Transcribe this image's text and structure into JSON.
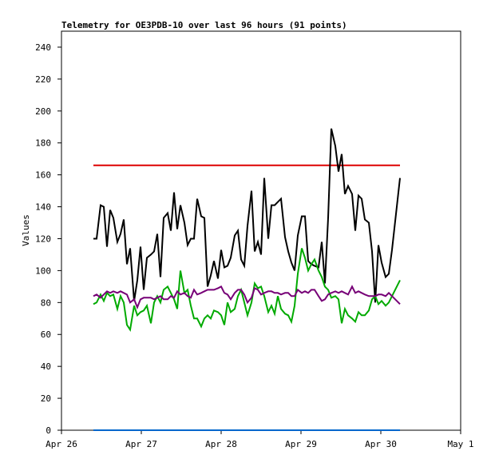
{
  "chart_data": {
    "type": "line",
    "title": "Telemetry for OE3PDB-10 over last 96 hours (91 points)",
    "xlabel": "",
    "ylabel": "Values",
    "ylim": [
      0,
      250
    ],
    "yticks": [
      0,
      20,
      40,
      60,
      80,
      100,
      120,
      140,
      160,
      180,
      200,
      220,
      240
    ],
    "xlim_days": [
      "Apr 26",
      "May 1"
    ],
    "xticks": [
      "Apr 26",
      "Apr 27",
      "Apr 28",
      "Apr 29",
      "Apr 30",
      "May 1"
    ],
    "grid": false,
    "legend": "none",
    "series": [
      {
        "color": "#dd0000",
        "x": [
          26.4,
          30.24
        ],
        "values": [
          166,
          166
        ]
      },
      {
        "color": "#0066cc",
        "x": [
          26.4,
          30.24
        ],
        "values": [
          0,
          0
        ]
      },
      {
        "color": "#000000",
        "x": [
          26.4,
          26.44,
          26.49,
          26.53,
          26.57,
          26.61,
          26.65,
          26.7,
          26.74,
          26.78,
          26.82,
          26.86,
          26.91,
          26.95,
          26.99,
          27.03,
          27.07,
          27.12,
          27.16,
          27.2,
          27.24,
          27.28,
          27.33,
          27.37,
          27.41,
          27.45,
          27.49,
          27.54,
          27.58,
          27.62,
          27.66,
          27.7,
          27.75,
          27.79,
          27.83,
          27.87,
          27.91,
          27.96,
          28.0,
          28.04,
          28.08,
          28.12,
          28.17,
          28.21,
          28.25,
          28.29,
          28.33,
          28.38,
          28.42,
          28.46,
          28.5,
          28.54,
          28.59,
          28.63,
          28.67,
          28.71,
          28.75,
          28.8,
          28.84,
          28.88,
          28.92,
          28.96,
          29.01,
          29.05,
          29.09,
          29.13,
          29.17,
          29.22,
          29.26,
          29.3,
          29.34,
          29.38,
          29.43,
          29.47,
          29.51,
          29.55,
          29.59,
          29.64,
          29.68,
          29.72,
          29.76,
          29.8,
          29.85,
          29.89,
          29.93,
          29.97,
          30.01,
          30.06,
          30.1,
          30.14,
          30.24
        ],
        "values": [
          120,
          120,
          141,
          140,
          115,
          138,
          133,
          118,
          123,
          132,
          104,
          114,
          81,
          94,
          115,
          88,
          108,
          110,
          112,
          123,
          96,
          133,
          136,
          125,
          149,
          126,
          141,
          130,
          116,
          120,
          120,
          145,
          134,
          133,
          90,
          97,
          106,
          95,
          113,
          102,
          103,
          108,
          122,
          125,
          107,
          103,
          128,
          150,
          112,
          118,
          110,
          158,
          120,
          141,
          141,
          143,
          145,
          121,
          112,
          105,
          100,
          122,
          134,
          134,
          106,
          104,
          103,
          102,
          118,
          92,
          133,
          189,
          178,
          162,
          173,
          148,
          153,
          148,
          125,
          147,
          145,
          132,
          130,
          112,
          80,
          116,
          105,
          96,
          98,
          113,
          158
        ]
      },
      {
        "color": "#00aa00",
        "x": [
          26.4,
          26.44,
          26.49,
          26.53,
          26.57,
          26.61,
          26.65,
          26.7,
          26.74,
          26.78,
          26.82,
          26.86,
          26.91,
          26.95,
          26.99,
          27.03,
          27.07,
          27.12,
          27.16,
          27.2,
          27.24,
          27.28,
          27.33,
          27.37,
          27.41,
          27.45,
          27.49,
          27.54,
          27.58,
          27.62,
          27.66,
          27.7,
          27.75,
          27.79,
          27.83,
          27.87,
          27.91,
          27.96,
          28.0,
          28.04,
          28.08,
          28.12,
          28.17,
          28.21,
          28.25,
          28.29,
          28.33,
          28.38,
          28.42,
          28.46,
          28.5,
          28.54,
          28.59,
          28.63,
          28.67,
          28.71,
          28.75,
          28.8,
          28.84,
          28.88,
          28.92,
          28.96,
          29.01,
          29.05,
          29.09,
          29.13,
          29.17,
          29.22,
          29.26,
          29.3,
          29.34,
          29.38,
          29.43,
          29.47,
          29.51,
          29.55,
          29.59,
          29.64,
          29.68,
          29.72,
          29.76,
          29.8,
          29.85,
          29.89,
          29.93,
          29.97,
          30.01,
          30.06,
          30.1,
          30.14,
          30.24
        ],
        "values": [
          79,
          80,
          85,
          81,
          86,
          84,
          85,
          76,
          84,
          80,
          66,
          63,
          78,
          72,
          74,
          75,
          78,
          67,
          80,
          84,
          80,
          88,
          90,
          86,
          82,
          76,
          100,
          86,
          88,
          78,
          70,
          70,
          65,
          70,
          72,
          70,
          75,
          74,
          72,
          66,
          80,
          74,
          76,
          84,
          88,
          80,
          72,
          80,
          92,
          89,
          90,
          84,
          74,
          78,
          73,
          84,
          76,
          73,
          72,
          68,
          78,
          98,
          114,
          108,
          100,
          104,
          107,
          100,
          96,
          90,
          88,
          83,
          84,
          82,
          67,
          76,
          72,
          70,
          68,
          74,
          72,
          72,
          75,
          82,
          84,
          79,
          81,
          78,
          80,
          84,
          94
        ]
      },
      {
        "color": "#770077",
        "x": [
          26.4,
          26.44,
          26.49,
          26.53,
          26.57,
          26.61,
          26.65,
          26.7,
          26.74,
          26.78,
          26.82,
          26.86,
          26.91,
          26.95,
          26.99,
          27.03,
          27.07,
          27.12,
          27.16,
          27.2,
          27.24,
          27.28,
          27.33,
          27.37,
          27.41,
          27.45,
          27.49,
          27.54,
          27.58,
          27.62,
          27.66,
          27.7,
          27.75,
          27.79,
          27.83,
          27.87,
          27.91,
          27.96,
          28.0,
          28.04,
          28.08,
          28.12,
          28.17,
          28.21,
          28.25,
          28.29,
          28.33,
          28.38,
          28.42,
          28.46,
          28.5,
          28.54,
          28.59,
          28.63,
          28.67,
          28.71,
          28.75,
          28.8,
          28.84,
          28.88,
          28.92,
          28.96,
          29.01,
          29.05,
          29.09,
          29.13,
          29.17,
          29.22,
          29.26,
          29.3,
          29.34,
          29.38,
          29.43,
          29.47,
          29.51,
          29.55,
          29.59,
          29.64,
          29.68,
          29.72,
          29.76,
          29.8,
          29.85,
          29.89,
          29.93,
          29.97,
          30.01,
          30.06,
          30.1,
          30.14,
          30.24
        ],
        "values": [
          84,
          85,
          83,
          85,
          87,
          86,
          87,
          86,
          87,
          86,
          85,
          80,
          82,
          77,
          82,
          83,
          83,
          83,
          82,
          83,
          84,
          82,
          82,
          84,
          83,
          87,
          85,
          86,
          84,
          83,
          88,
          85,
          86,
          87,
          88,
          88,
          88,
          89,
          90,
          86,
          85,
          82,
          86,
          88,
          88,
          85,
          80,
          83,
          89,
          88,
          85,
          86,
          87,
          87,
          86,
          86,
          85,
          86,
          86,
          84,
          84,
          88,
          86,
          87,
          86,
          88,
          88,
          84,
          81,
          82,
          85,
          86,
          87,
          86,
          87,
          86,
          85,
          90,
          86,
          87,
          86,
          85,
          84,
          84,
          84,
          85,
          85,
          84,
          86,
          84,
          79
        ]
      }
    ]
  }
}
